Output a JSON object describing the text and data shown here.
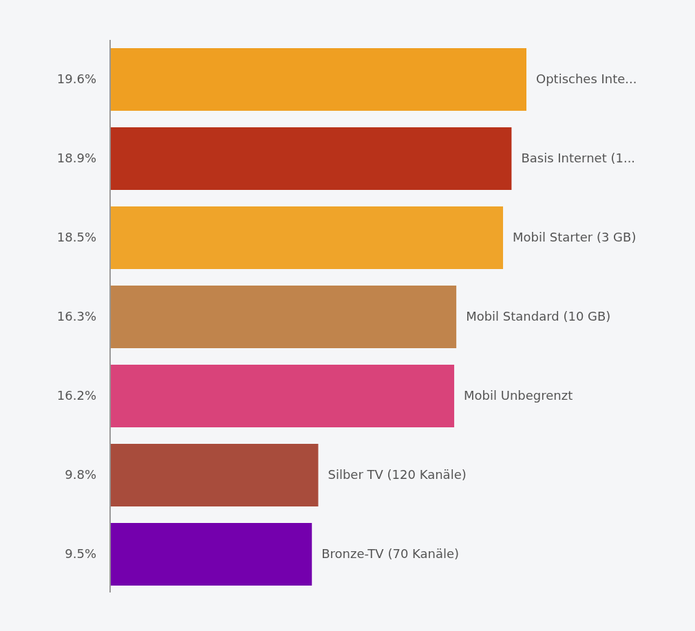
{
  "chart_data": {
    "type": "bar",
    "orientation": "horizontal",
    "categories": [
      "Optisches Inte...",
      "Basis Internet (1...",
      "Mobil Starter (3 GB)",
      "Mobil Standard (10 GB)",
      "Mobil Unbegrenzt",
      "Silber TV (120 Kanäle)",
      "Bronze-TV (70 Kanäle)"
    ],
    "values": [
      19.6,
      18.9,
      18.5,
      16.3,
      16.2,
      9.8,
      9.5
    ],
    "colors": [
      "#ef9f22",
      "#b8321a",
      "#efa42a",
      "#c0844c",
      "#d9437a",
      "#a84c3c",
      "#7400ad"
    ],
    "value_labels": [
      "19.6%",
      "18.9%",
      "18.5%",
      "16.3%",
      "16.2%",
      "9.8%",
      "9.5%"
    ]
  }
}
